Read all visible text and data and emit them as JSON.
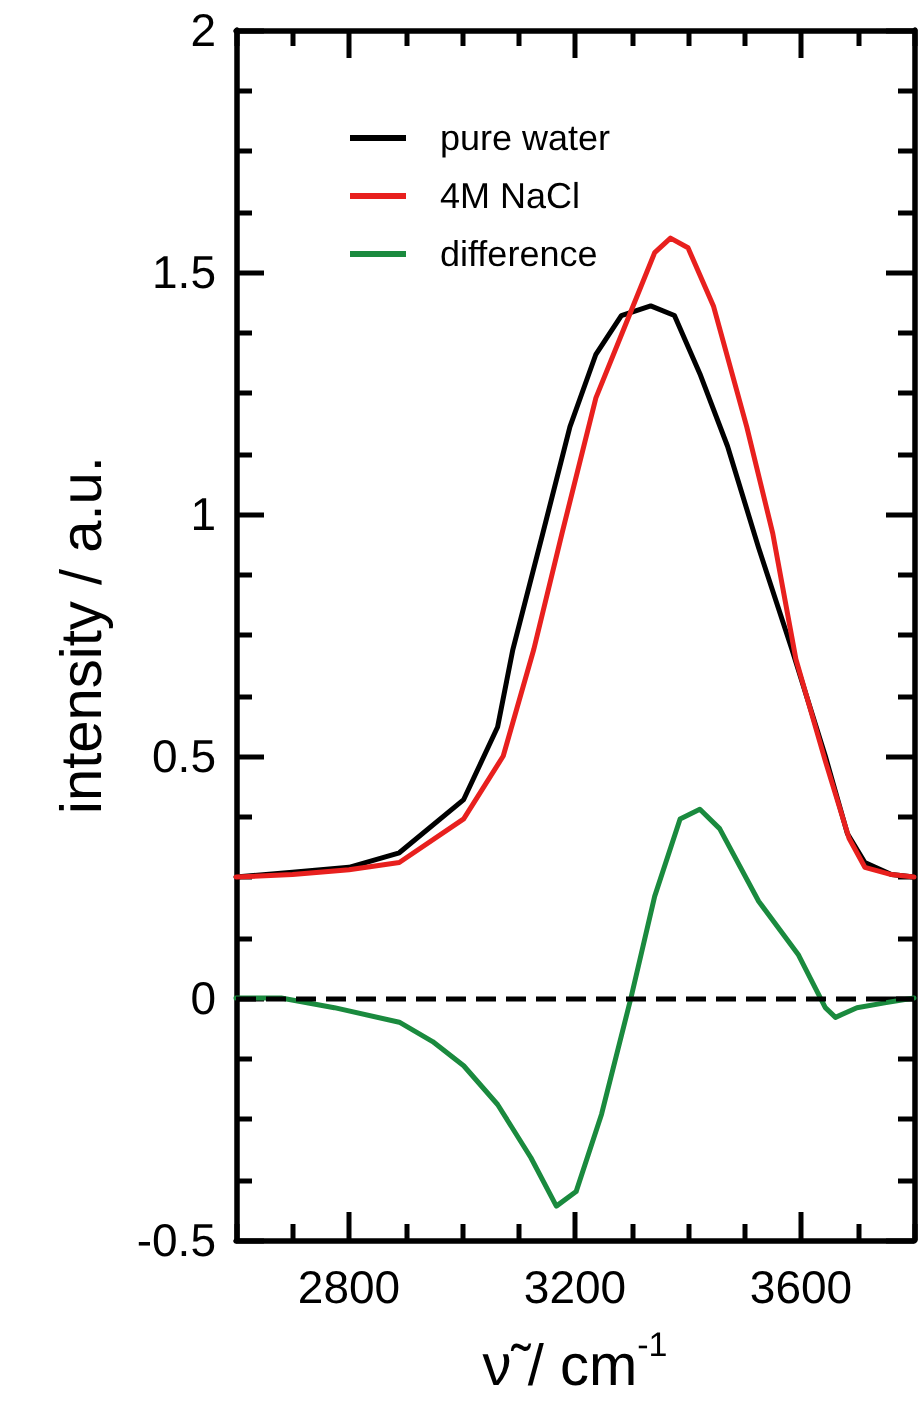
{
  "chart_data": {
    "type": "line",
    "xlabel": "ν̃ / cm$^{-1}$",
    "ylabel": "intensity / a.u.",
    "xlim": [
      2600,
      3800
    ],
    "xticks": [
      {
        "value": 2600,
        "label": null
      },
      {
        "value": 2700,
        "label": null
      },
      2800,
      {
        "value": 2900,
        "label": null
      },
      {
        "value": 3000,
        "label": null
      },
      {
        "value": 3100,
        "label": null
      },
      3200,
      {
        "value": 3300,
        "label": null
      },
      {
        "value": 3400,
        "label": null
      },
      {
        "value": 3500,
        "label": null
      },
      3600,
      {
        "value": 3700,
        "label": null
      },
      {
        "value": 3800,
        "label": null
      }
    ],
    "ylim": [
      -0.5,
      2
    ],
    "yticks": [
      -0.5,
      {
        "value": -0.375,
        "label": null
      },
      {
        "value": -0.25,
        "label": null
      },
      {
        "value": -0.125,
        "label": null
      },
      0,
      {
        "value": 0.125,
        "label": null
      },
      {
        "value": 0.25,
        "label": null
      },
      {
        "value": 0.375,
        "label": null
      },
      0.5,
      {
        "value": 0.625,
        "label": null
      },
      {
        "value": 0.75,
        "label": null
      },
      {
        "value": 0.875,
        "label": null
      },
      1,
      {
        "value": 1.125,
        "label": null
      },
      {
        "value": 1.25,
        "label": null
      },
      {
        "value": 1.375,
        "label": null
      },
      1.5,
      {
        "value": 1.625,
        "label": null
      },
      {
        "value": 1.75,
        "label": null
      },
      {
        "value": 1.875,
        "label": null
      },
      2
    ],
    "grid": false,
    "legend": "top left",
    "marker": "none",
    "line_style": "solid",
    "ref_lines": [
      {
        "axis": "y",
        "value": 0,
        "color": "#000000",
        "line_style": "dashed"
      }
    ],
    "series": [
      {
        "name": "pure water",
        "color": "#000000",
        "x": [
          2600,
          2700,
          2800,
          2889,
          3003,
          3063,
          3090,
          3143,
          3191,
          3237,
          3282,
          3334,
          3376,
          3421,
          3470,
          3525,
          3584,
          3643,
          3682,
          3713,
          3760,
          3800
        ],
        "values": [
          0.25,
          0.26,
          0.27,
          0.3,
          0.41,
          0.56,
          0.72,
          0.96,
          1.18,
          1.33,
          1.41,
          1.43,
          1.41,
          1.29,
          1.14,
          0.93,
          0.72,
          0.5,
          0.34,
          0.28,
          0.255,
          0.25
        ]
      },
      {
        "name": "4M NaCl",
        "color": "#e8201e",
        "x": [
          2600,
          2700,
          2800,
          2889,
          3003,
          3073,
          3127,
          3177,
          3237,
          3296,
          3341,
          3369,
          3400,
          3445,
          3504,
          3550,
          3591,
          3643,
          3685,
          3713,
          3760,
          3800
        ],
        "values": [
          0.25,
          0.255,
          0.265,
          0.28,
          0.37,
          0.5,
          0.72,
          0.96,
          1.24,
          1.41,
          1.54,
          1.57,
          1.55,
          1.43,
          1.18,
          0.96,
          0.7,
          0.49,
          0.33,
          0.27,
          0.255,
          0.25
        ]
      },
      {
        "name": "difference",
        "color": "#1a8a3e",
        "x": [
          2600,
          2680,
          2774,
          2889,
          2948,
          3003,
          3063,
          3122,
          3167,
          3202,
          3247,
          3299,
          3341,
          3386,
          3421,
          3456,
          3525,
          3595,
          3643,
          3661,
          3699,
          3748,
          3800
        ],
        "values": [
          0,
          0,
          -0.02,
          -0.05,
          -0.09,
          -0.14,
          -0.22,
          -0.33,
          -0.43,
          -0.4,
          -0.24,
          0,
          0.21,
          0.37,
          0.39,
          0.35,
          0.2,
          0.09,
          -0.02,
          -0.04,
          -0.02,
          -0.01,
          0
        ]
      }
    ]
  }
}
